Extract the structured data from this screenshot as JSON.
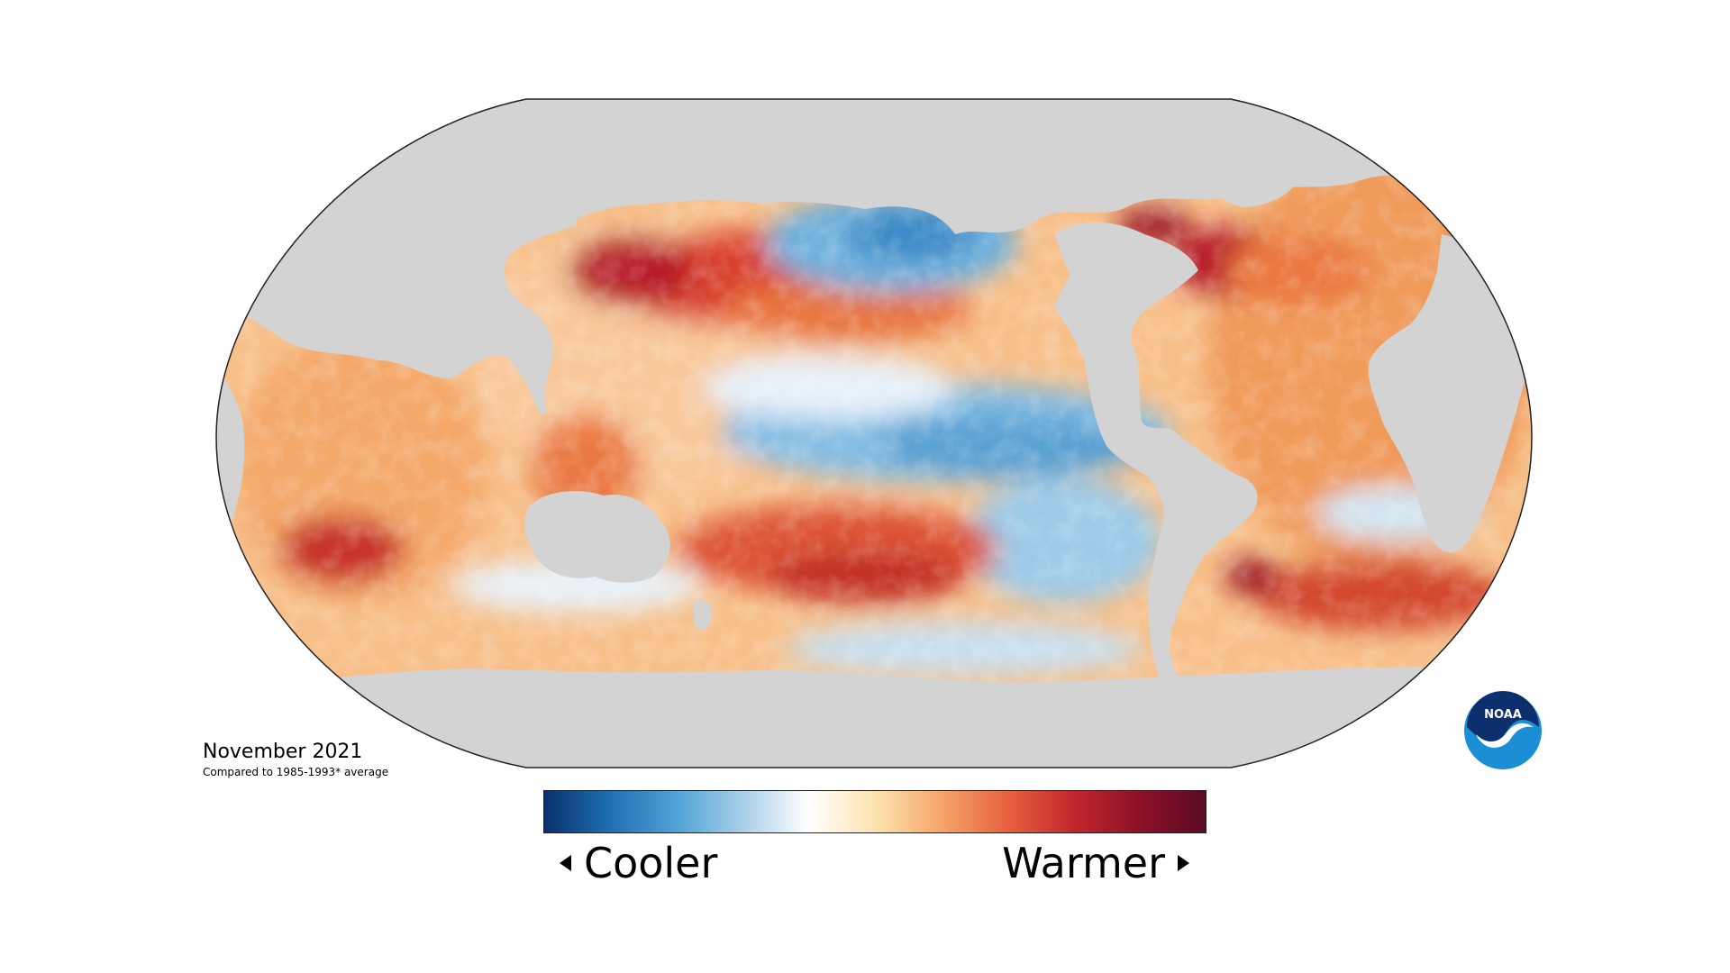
{
  "map": {
    "date_label": "November 2021",
    "baseline_note": "Compared to 1985-1993* average",
    "land_color": "#d3d3d3",
    "background_color": "#ffffff"
  },
  "legend": {
    "left_label": "Cooler",
    "right_label": "Warmer",
    "colors": [
      "#08306b",
      "#1f6fb4",
      "#4fa3d6",
      "#a9cfe8",
      "#ffffff",
      "#fde3b0",
      "#f6a56a",
      "#e8613f",
      "#c2272d",
      "#8c1027",
      "#5a0a22"
    ]
  },
  "logo": {
    "name": "noaa-logo",
    "text": "NOAA",
    "colors": [
      "#0d2f6e",
      "#1b8fd6",
      "#ffffff"
    ]
  }
}
